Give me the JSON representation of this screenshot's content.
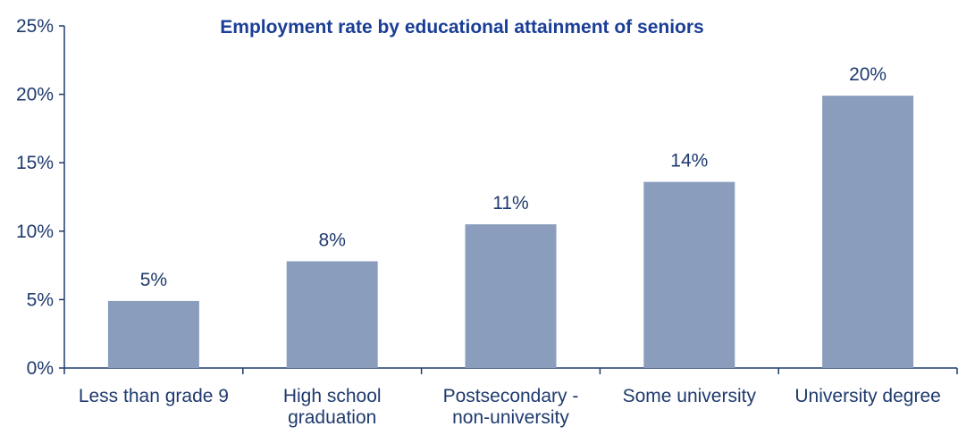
{
  "chart_data": {
    "type": "bar",
    "title": "Employment rate by educational attainment of seniors",
    "xlabel": "",
    "ylabel": "",
    "categories": [
      [
        "Less than grade 9"
      ],
      [
        "High school",
        "graduation"
      ],
      [
        "Postsecondary -",
        "non-university"
      ],
      [
        "Some university"
      ],
      [
        "University degree"
      ]
    ],
    "values": [
      4.9,
      7.8,
      10.5,
      13.6,
      19.9
    ],
    "value_labels": [
      "5%",
      "8%",
      "11%",
      "14%",
      "20%"
    ],
    "yticks": [
      0,
      5,
      10,
      15,
      20,
      25
    ],
    "ytick_labels": [
      "0%",
      "5%",
      "10%",
      "15%",
      "20%",
      "25%"
    ],
    "ylim": [
      0,
      25
    ],
    "grid": false,
    "legend": "none"
  },
  "colors": {
    "bar": "#8a9dbd",
    "axis": "#1f3a6e",
    "text": "#1f3a6e",
    "title": "#1a3d96"
  }
}
